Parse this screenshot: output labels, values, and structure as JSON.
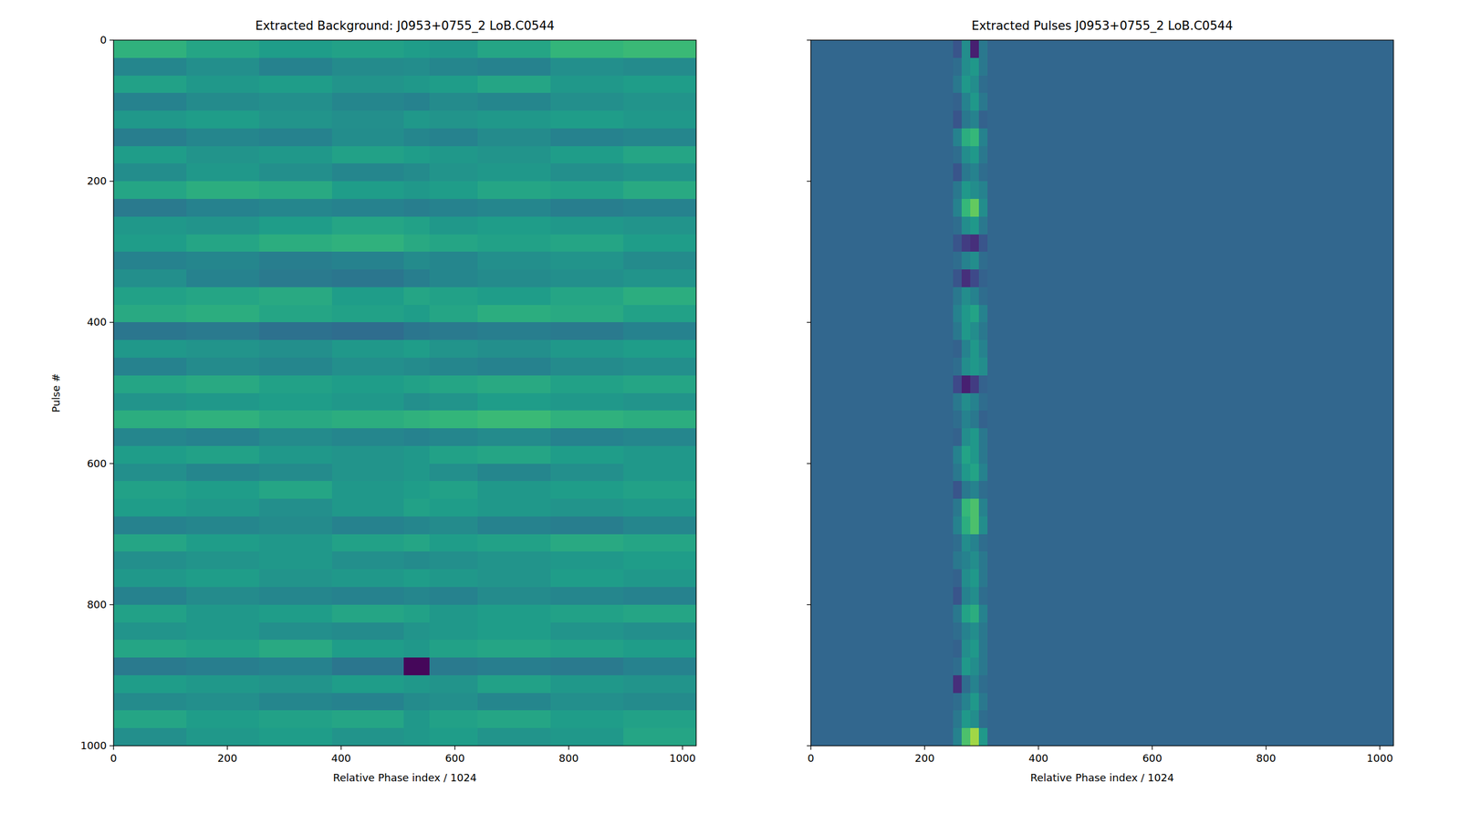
{
  "chart_data": [
    {
      "type": "heatmap",
      "title": "Extracted Background: J0953+0755_2 LoB.C0544",
      "xlabel": "Relative Phase index / 1024",
      "ylabel": "Pulse #",
      "xlim": [
        0,
        1024
      ],
      "ylim": [
        1000,
        0
      ],
      "xticks": [
        0,
        200,
        400,
        600,
        800,
        1000
      ],
      "yticks": [
        0,
        200,
        400,
        600,
        800,
        1000
      ],
      "color": "viridis",
      "color_range": [
        0,
        1
      ],
      "x_edges": [
        0,
        128,
        256,
        384,
        510,
        555,
        640,
        768,
        896,
        1024
      ],
      "y_edges": [
        0,
        25,
        50,
        75,
        100,
        125,
        150,
        175,
        200,
        225,
        250,
        275,
        300,
        325,
        350,
        375,
        400,
        425,
        450,
        475,
        500,
        525,
        550,
        575,
        600,
        625,
        650,
        675,
        700,
        725,
        750,
        775,
        800,
        825,
        850,
        875,
        900,
        925,
        950,
        975,
        1000
      ],
      "values": [
        [
          0.72,
          0.66,
          0.62,
          0.64,
          0.62,
          0.6,
          0.66,
          0.74,
          0.76
        ],
        [
          0.52,
          0.56,
          0.5,
          0.54,
          0.55,
          0.52,
          0.5,
          0.56,
          0.54
        ],
        [
          0.64,
          0.6,
          0.62,
          0.58,
          0.6,
          0.62,
          0.66,
          0.6,
          0.62
        ],
        [
          0.5,
          0.54,
          0.56,
          0.52,
          0.5,
          0.54,
          0.52,
          0.56,
          0.58
        ],
        [
          0.6,
          0.62,
          0.58,
          0.56,
          0.6,
          0.58,
          0.6,
          0.62,
          0.6
        ],
        [
          0.48,
          0.52,
          0.5,
          0.55,
          0.52,
          0.5,
          0.54,
          0.5,
          0.52
        ],
        [
          0.62,
          0.58,
          0.6,
          0.64,
          0.62,
          0.6,
          0.58,
          0.62,
          0.66
        ],
        [
          0.55,
          0.6,
          0.56,
          0.52,
          0.54,
          0.58,
          0.6,
          0.56,
          0.58
        ],
        [
          0.66,
          0.7,
          0.68,
          0.62,
          0.6,
          0.62,
          0.66,
          0.64,
          0.68
        ],
        [
          0.46,
          0.5,
          0.52,
          0.5,
          0.48,
          0.5,
          0.52,
          0.48,
          0.5
        ],
        [
          0.6,
          0.58,
          0.62,
          0.66,
          0.64,
          0.6,
          0.62,
          0.6,
          0.58
        ],
        [
          0.62,
          0.66,
          0.7,
          0.72,
          0.68,
          0.66,
          0.64,
          0.66,
          0.62
        ],
        [
          0.5,
          0.52,
          0.48,
          0.5,
          0.54,
          0.52,
          0.56,
          0.58,
          0.54
        ],
        [
          0.56,
          0.5,
          0.46,
          0.44,
          0.48,
          0.52,
          0.54,
          0.56,
          0.58
        ],
        [
          0.64,
          0.66,
          0.68,
          0.62,
          0.66,
          0.64,
          0.62,
          0.66,
          0.7
        ],
        [
          0.68,
          0.7,
          0.66,
          0.64,
          0.62,
          0.66,
          0.7,
          0.68,
          0.64
        ],
        [
          0.44,
          0.46,
          0.42,
          0.4,
          0.44,
          0.46,
          0.48,
          0.46,
          0.5
        ],
        [
          0.6,
          0.58,
          0.56,
          0.6,
          0.62,
          0.58,
          0.56,
          0.6,
          0.62
        ],
        [
          0.5,
          0.54,
          0.52,
          0.56,
          0.54,
          0.52,
          0.5,
          0.54,
          0.56
        ],
        [
          0.66,
          0.68,
          0.64,
          0.62,
          0.64,
          0.66,
          0.68,
          0.64,
          0.66
        ],
        [
          0.58,
          0.6,
          0.62,
          0.6,
          0.56,
          0.58,
          0.62,
          0.6,
          0.58
        ],
        [
          0.7,
          0.72,
          0.68,
          0.7,
          0.72,
          0.74,
          0.76,
          0.72,
          0.7
        ],
        [
          0.52,
          0.5,
          0.54,
          0.52,
          0.5,
          0.52,
          0.54,
          0.5,
          0.52
        ],
        [
          0.62,
          0.64,
          0.6,
          0.58,
          0.6,
          0.64,
          0.66,
          0.62,
          0.6
        ],
        [
          0.56,
          0.52,
          0.54,
          0.58,
          0.6,
          0.56,
          0.52,
          0.56,
          0.6
        ],
        [
          0.64,
          0.62,
          0.66,
          0.6,
          0.62,
          0.64,
          0.6,
          0.62,
          0.64
        ],
        [
          0.62,
          0.6,
          0.56,
          0.6,
          0.64,
          0.62,
          0.6,
          0.58,
          0.6
        ],
        [
          0.5,
          0.52,
          0.54,
          0.5,
          0.52,
          0.54,
          0.5,
          0.48,
          0.52
        ],
        [
          0.66,
          0.62,
          0.6,
          0.64,
          0.66,
          0.62,
          0.64,
          0.68,
          0.66
        ],
        [
          0.56,
          0.58,
          0.6,
          0.56,
          0.54,
          0.56,
          0.58,
          0.6,
          0.62
        ],
        [
          0.6,
          0.62,
          0.58,
          0.6,
          0.62,
          0.6,
          0.58,
          0.62,
          0.6
        ],
        [
          0.5,
          0.54,
          0.52,
          0.5,
          0.52,
          0.5,
          0.54,
          0.52,
          0.5
        ],
        [
          0.64,
          0.6,
          0.62,
          0.66,
          0.64,
          0.6,
          0.62,
          0.64,
          0.66
        ],
        [
          0.58,
          0.6,
          0.56,
          0.54,
          0.58,
          0.6,
          0.62,
          0.58,
          0.56
        ],
        [
          0.66,
          0.64,
          0.68,
          0.62,
          0.6,
          0.64,
          0.66,
          0.64,
          0.62
        ],
        [
          0.46,
          0.48,
          0.5,
          0.44,
          0.02,
          0.46,
          0.48,
          0.46,
          0.5
        ],
        [
          0.62,
          0.6,
          0.58,
          0.62,
          0.6,
          0.58,
          0.64,
          0.6,
          0.58
        ],
        [
          0.54,
          0.56,
          0.52,
          0.5,
          0.54,
          0.56,
          0.52,
          0.56,
          0.54
        ],
        [
          0.66,
          0.62,
          0.64,
          0.66,
          0.6,
          0.64,
          0.66,
          0.62,
          0.64
        ],
        [
          0.56,
          0.6,
          0.62,
          0.58,
          0.6,
          0.62,
          0.58,
          0.6,
          0.66
        ]
      ]
    },
    {
      "type": "heatmap",
      "title": "Extracted Pulses J0953+0755_2 LoB.C0544",
      "xlabel": "Relative Phase index / 1024",
      "xlim": [
        0,
        1024
      ],
      "ylim": [
        1000,
        0
      ],
      "xticks": [
        0,
        200,
        400,
        600,
        800,
        1000
      ],
      "yticks": [
        0,
        200,
        400,
        600,
        800,
        1000
      ],
      "tick_labels": "x",
      "color": "viridis",
      "color_range": [
        0,
        1
      ],
      "x_edges": [
        0,
        250,
        265,
        280,
        295,
        310,
        1024
      ],
      "y_edges": [
        0,
        25,
        50,
        75,
        100,
        125,
        150,
        175,
        200,
        225,
        250,
        275,
        300,
        325,
        350,
        375,
        400,
        425,
        450,
        475,
        500,
        525,
        550,
        575,
        600,
        625,
        650,
        675,
        700,
        725,
        750,
        775,
        800,
        825,
        850,
        875,
        900,
        925,
        950,
        975,
        1000
      ],
      "values": [
        [
          0.37,
          0.3,
          0.55,
          0.1,
          0.45,
          0.37
        ],
        [
          0.37,
          0.4,
          0.55,
          0.6,
          0.45,
          0.37
        ],
        [
          0.37,
          0.45,
          0.6,
          0.55,
          0.4,
          0.37
        ],
        [
          0.37,
          0.35,
          0.5,
          0.6,
          0.45,
          0.37
        ],
        [
          0.37,
          0.3,
          0.45,
          0.5,
          0.35,
          0.37
        ],
        [
          0.37,
          0.5,
          0.7,
          0.75,
          0.5,
          0.37
        ],
        [
          0.37,
          0.4,
          0.55,
          0.6,
          0.45,
          0.37
        ],
        [
          0.37,
          0.3,
          0.45,
          0.5,
          0.4,
          0.37
        ],
        [
          0.37,
          0.45,
          0.6,
          0.55,
          0.5,
          0.37
        ],
        [
          0.37,
          0.5,
          0.75,
          0.85,
          0.55,
          0.37
        ],
        [
          0.37,
          0.4,
          0.55,
          0.6,
          0.45,
          0.37
        ],
        [
          0.37,
          0.3,
          0.2,
          0.15,
          0.3,
          0.37
        ],
        [
          0.37,
          0.4,
          0.5,
          0.55,
          0.4,
          0.37
        ],
        [
          0.37,
          0.3,
          0.15,
          0.25,
          0.35,
          0.37
        ],
        [
          0.37,
          0.45,
          0.55,
          0.5,
          0.4,
          0.37
        ],
        [
          0.37,
          0.5,
          0.6,
          0.65,
          0.5,
          0.37
        ],
        [
          0.37,
          0.45,
          0.6,
          0.55,
          0.45,
          0.37
        ],
        [
          0.37,
          0.35,
          0.5,
          0.6,
          0.5,
          0.37
        ],
        [
          0.37,
          0.4,
          0.55,
          0.6,
          0.55,
          0.37
        ],
        [
          0.37,
          0.25,
          0.1,
          0.2,
          0.35,
          0.37
        ],
        [
          0.37,
          0.45,
          0.55,
          0.5,
          0.4,
          0.37
        ],
        [
          0.37,
          0.4,
          0.5,
          0.45,
          0.35,
          0.37
        ],
        [
          0.37,
          0.35,
          0.55,
          0.6,
          0.45,
          0.37
        ],
        [
          0.37,
          0.5,
          0.65,
          0.6,
          0.45,
          0.37
        ],
        [
          0.37,
          0.45,
          0.6,
          0.65,
          0.5,
          0.37
        ],
        [
          0.37,
          0.3,
          0.45,
          0.5,
          0.4,
          0.37
        ],
        [
          0.37,
          0.45,
          0.75,
          0.8,
          0.5,
          0.37
        ],
        [
          0.37,
          0.5,
          0.7,
          0.8,
          0.55,
          0.37
        ],
        [
          0.37,
          0.4,
          0.55,
          0.5,
          0.4,
          0.37
        ],
        [
          0.37,
          0.45,
          0.5,
          0.55,
          0.45,
          0.37
        ],
        [
          0.37,
          0.35,
          0.55,
          0.6,
          0.45,
          0.37
        ],
        [
          0.37,
          0.3,
          0.5,
          0.55,
          0.4,
          0.37
        ],
        [
          0.37,
          0.45,
          0.65,
          0.7,
          0.5,
          0.37
        ],
        [
          0.37,
          0.4,
          0.5,
          0.55,
          0.45,
          0.37
        ],
        [
          0.37,
          0.35,
          0.55,
          0.6,
          0.45,
          0.37
        ],
        [
          0.37,
          0.4,
          0.6,
          0.55,
          0.45,
          0.37
        ],
        [
          0.37,
          0.15,
          0.4,
          0.5,
          0.4,
          0.37
        ],
        [
          0.37,
          0.4,
          0.5,
          0.6,
          0.45,
          0.37
        ],
        [
          0.37,
          0.45,
          0.6,
          0.55,
          0.4,
          0.37
        ],
        [
          0.37,
          0.5,
          0.8,
          0.92,
          0.6,
          0.37
        ]
      ]
    }
  ]
}
